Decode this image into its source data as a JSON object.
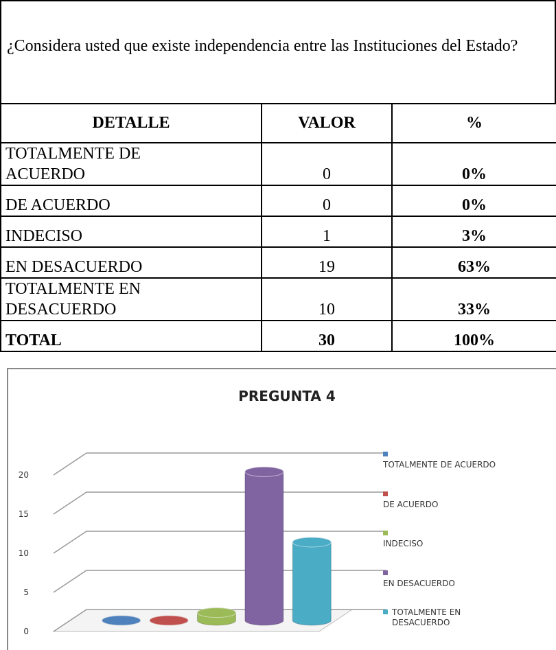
{
  "question": "¿Considera usted que existe independencia entre las Instituciones del Estado?",
  "table": {
    "header": [
      "DETALLE",
      "VALOR",
      "%"
    ],
    "rows": [
      [
        "TOTALMENTE DE ACUERDO",
        0,
        "0%"
      ],
      [
        "DE ACUERDO",
        0,
        "0%"
      ],
      [
        "INDECISO",
        1,
        "3%"
      ],
      [
        "EN DESACUERDO",
        19,
        "63%"
      ],
      [
        "TOTALMENTE EN DESACUERDO",
        10,
        "33%"
      ]
    ],
    "total": [
      "TOTAL",
      30,
      "100%"
    ]
  },
  "chart_data": {
    "type": "bar3d",
    "title": "PREGUNTA 4",
    "series": [
      {
        "name": "TOTALMENTE DE ACUERDO",
        "color": "#4f81bd",
        "values": [
          0
        ]
      },
      {
        "name": "DE ACUERDO",
        "color": "#c0504d",
        "values": [
          0
        ]
      },
      {
        "name": "INDECISO",
        "color": "#9bbb59",
        "values": [
          1
        ]
      },
      {
        "name": "EN DESACUERDO",
        "color": "#8064a2",
        "values": [
          19
        ]
      },
      {
        "name": "TOTALMENTE EN DESACUERDO",
        "color": "#4bacc6",
        "values": [
          10
        ]
      }
    ],
    "ylim": [
      0,
      20
    ],
    "yticks": [
      0,
      5,
      10,
      15,
      20
    ],
    "grid": true,
    "legend": "right"
  }
}
